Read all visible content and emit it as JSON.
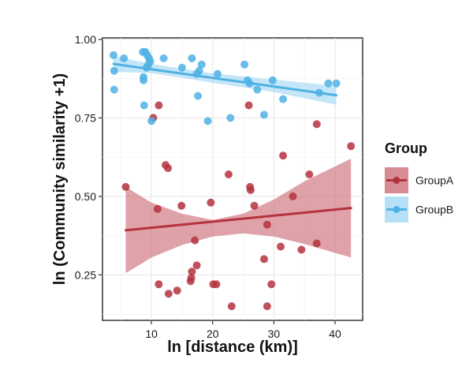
{
  "chart_data": {
    "type": "scatter",
    "xlabel": "ln [distance (km)]",
    "ylabel": "ln (Community similarity +1)",
    "xlim": [
      2.0,
      44.5
    ],
    "ylim": [
      0.105,
      1.005
    ],
    "x_ticks": [
      10,
      20,
      30,
      40
    ],
    "y_ticks": [
      0.25,
      0.5,
      0.75,
      1.0
    ],
    "x_tick_labels": [
      "10",
      "20",
      "30",
      "40"
    ],
    "y_tick_labels": [
      "0.25",
      "0.50",
      "0.75",
      "1.00"
    ],
    "grid": true,
    "legend": {
      "title": "Group",
      "position": "right"
    },
    "series": [
      {
        "name": "GroupA",
        "color": "#b5323f",
        "fill": "#c9646e",
        "points": [
          [
            5.8,
            0.53
          ],
          [
            10.3,
            0.75
          ],
          [
            11.2,
            0.79
          ],
          [
            11.0,
            0.46
          ],
          [
            11.2,
            0.22
          ],
          [
            12.3,
            0.6
          ],
          [
            12.7,
            0.59
          ],
          [
            12.8,
            0.19
          ],
          [
            14.2,
            0.2
          ],
          [
            14.9,
            0.47
          ],
          [
            16.4,
            0.23
          ],
          [
            16.5,
            0.24
          ],
          [
            16.6,
            0.26
          ],
          [
            17.1,
            0.36
          ],
          [
            17.4,
            0.28
          ],
          [
            19.7,
            0.48
          ],
          [
            20.1,
            0.22
          ],
          [
            20.6,
            0.22
          ],
          [
            22.6,
            0.57
          ],
          [
            23.1,
            0.15
          ],
          [
            25.9,
            0.79
          ],
          [
            26.1,
            0.53
          ],
          [
            26.2,
            0.52
          ],
          [
            26.8,
            0.47
          ],
          [
            28.4,
            0.3
          ],
          [
            28.9,
            0.41
          ],
          [
            28.9,
            0.15
          ],
          [
            29.6,
            0.22
          ],
          [
            31.1,
            0.34
          ],
          [
            31.5,
            0.63
          ],
          [
            33.1,
            0.5
          ],
          [
            34.5,
            0.33
          ],
          [
            35.8,
            0.57
          ],
          [
            37.0,
            0.73
          ],
          [
            37.0,
            0.35
          ],
          [
            42.6,
            0.66
          ]
        ],
        "fit": {
          "x": [
            5.8,
            42.6
          ],
          "y": [
            0.392,
            0.463
          ]
        },
        "ci": {
          "x": [
            5.8,
            10,
            15,
            20,
            25,
            30,
            35,
            42.6
          ],
          "lower": [
            0.255,
            0.305,
            0.345,
            0.372,
            0.382,
            0.372,
            0.348,
            0.305
          ],
          "upper": [
            0.53,
            0.48,
            0.445,
            0.425,
            0.445,
            0.49,
            0.548,
            0.62
          ]
        }
      },
      {
        "name": "GroupB",
        "color": "#4fb1e4",
        "fill": "#9dd5f3",
        "points": [
          [
            3.8,
            0.95
          ],
          [
            3.9,
            0.9
          ],
          [
            3.9,
            0.84
          ],
          [
            5.5,
            0.94
          ],
          [
            8.6,
            0.96
          ],
          [
            8.7,
            0.87
          ],
          [
            8.7,
            0.88
          ],
          [
            8.8,
            0.79
          ],
          [
            9.0,
            0.96
          ],
          [
            9.2,
            0.91
          ],
          [
            9.3,
            0.95
          ],
          [
            9.5,
            0.92
          ],
          [
            9.6,
            0.94
          ],
          [
            9.8,
            0.93
          ],
          [
            10.0,
            0.74
          ],
          [
            12.0,
            0.94
          ],
          [
            15.0,
            0.91
          ],
          [
            16.6,
            0.94
          ],
          [
            17.4,
            0.89
          ],
          [
            17.6,
            0.82
          ],
          [
            17.8,
            0.9
          ],
          [
            18.2,
            0.92
          ],
          [
            19.2,
            0.74
          ],
          [
            20.8,
            0.89
          ],
          [
            22.9,
            0.75
          ],
          [
            25.2,
            0.92
          ],
          [
            25.7,
            0.87
          ],
          [
            26.0,
            0.86
          ],
          [
            27.3,
            0.84
          ],
          [
            28.4,
            0.76
          ],
          [
            29.8,
            0.87
          ],
          [
            31.5,
            0.81
          ],
          [
            37.4,
            0.83
          ],
          [
            38.9,
            0.86
          ],
          [
            40.2,
            0.86
          ]
        ],
        "fit": {
          "x": [
            3.8,
            40.2
          ],
          "y": [
            0.922,
            0.822
          ]
        },
        "ci": {
          "x": [
            3.8,
            10,
            20,
            30,
            40.2
          ],
          "lower": [
            0.897,
            0.893,
            0.862,
            0.832,
            0.792
          ],
          "upper": [
            0.947,
            0.922,
            0.892,
            0.872,
            0.852
          ]
        }
      }
    ]
  }
}
